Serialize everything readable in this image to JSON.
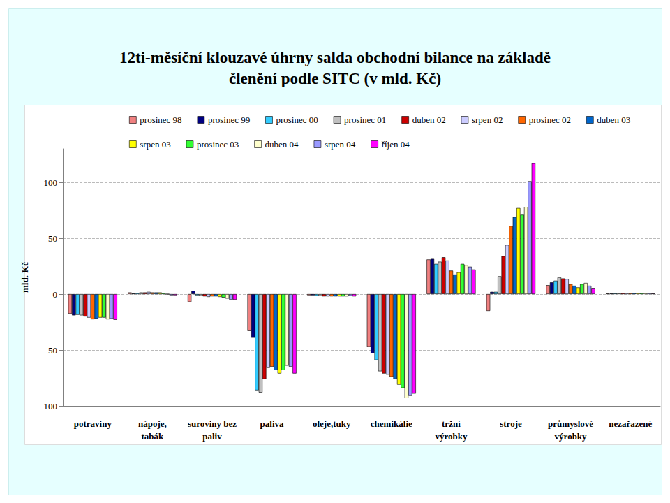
{
  "chart_data": {
    "type": "bar",
    "title": "12ti-měsíční klouzavé úhrny salda obchodní bilance na základě\nčlenění podle SITC (v mld. Kč)",
    "y_label": "mld. Kč",
    "categories": [
      "potraviny",
      "nápoje,\ntabák",
      "suroviny bez\npaliv",
      "paliva",
      "oleje,tuky",
      "chemikálie",
      "tržní\nvýrobky",
      "stroje",
      "průmyslové\nvýrobky",
      "nezařazené"
    ],
    "series": [
      {
        "name": "prosinec 98",
        "color": "#F08080",
        "values": [
          -17.5,
          1.5,
          -7,
          -33,
          -1,
          -47,
          31,
          -15,
          8,
          0.5
        ]
      },
      {
        "name": "prosinec 99",
        "color": "#000080",
        "values": [
          -19,
          0.5,
          3,
          -39,
          -1,
          -53,
          31.5,
          2,
          10.5,
          0.5
        ]
      },
      {
        "name": "prosinec 00",
        "color": "#33CCFF",
        "values": [
          -18.5,
          1,
          -1,
          -86,
          -1.5,
          -59,
          27,
          2,
          12,
          0.7
        ]
      },
      {
        "name": "prosinec 01",
        "color": "#C0C0C0",
        "values": [
          -19,
          1.5,
          -1.5,
          -88,
          -1.5,
          -69,
          29,
          16,
          15,
          0.8
        ]
      },
      {
        "name": "duben 02",
        "color": "#CC0000",
        "values": [
          -20,
          1.5,
          -2,
          -76,
          -2,
          -71,
          33,
          34,
          14,
          1
        ]
      },
      {
        "name": "srpen 02",
        "color": "#CCCCFF",
        "values": [
          -21,
          2,
          -2.5,
          -66,
          -2,
          -72,
          30,
          44,
          13.5,
          1
        ]
      },
      {
        "name": "prosinec 02",
        "color": "#FF6600",
        "values": [
          -22.5,
          1.5,
          -2,
          -65,
          -2,
          -74,
          21,
          61,
          9,
          1
        ]
      },
      {
        "name": "duben 03",
        "color": "#0066CC",
        "values": [
          -22,
          1.5,
          -2,
          -68,
          -2,
          -76,
          17.5,
          69,
          7.5,
          1
        ]
      },
      {
        "name": "srpen 03",
        "color": "#FFFF00",
        "values": [
          -21,
          1.5,
          -2.5,
          -71,
          -2,
          -81,
          19.5,
          77,
          6,
          1
        ]
      },
      {
        "name": "prosinec 03",
        "color": "#33FF33",
        "values": [
          -21,
          1,
          -3,
          -68,
          -2,
          -84,
          27,
          71,
          9,
          1
        ]
      },
      {
        "name": "duben 04",
        "color": "#FFFFCC",
        "values": [
          -22.5,
          0,
          -4,
          -64,
          -2,
          -93,
          26,
          78,
          10,
          1
        ]
      },
      {
        "name": "srpen 04",
        "color": "#9999FF",
        "values": [
          -22,
          -1,
          -5,
          -65,
          -1.5,
          -91,
          24.5,
          101,
          7.5,
          1
        ]
      },
      {
        "name": "říjen 04",
        "color": "#FF00FF",
        "values": [
          -23,
          -1,
          -5,
          -71,
          -2,
          -89,
          22,
          117,
          5.5,
          0.5
        ]
      }
    ],
    "ylim": [
      -100,
      130
    ],
    "yticks": [
      -100,
      -50,
      0,
      50,
      100
    ],
    "grid": true,
    "legend": "top"
  }
}
